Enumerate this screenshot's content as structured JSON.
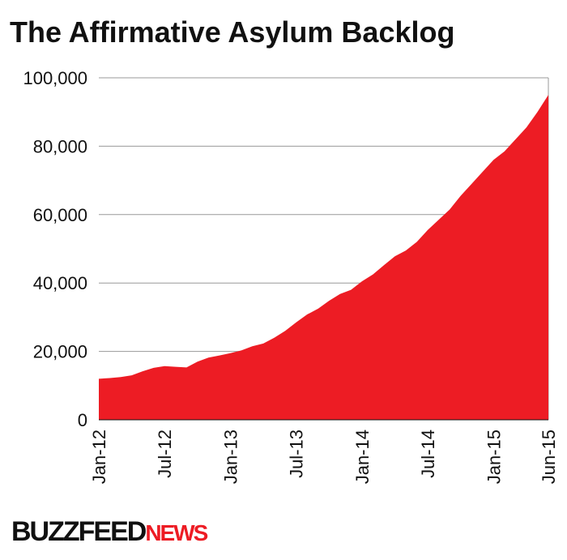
{
  "chart_data": {
    "type": "area",
    "title": "The Affirmative Asylum Backlog",
    "categories": [
      "Jan-12",
      null,
      null,
      null,
      null,
      null,
      "Jul-12",
      null,
      null,
      null,
      null,
      null,
      "Jan-13",
      null,
      null,
      null,
      null,
      null,
      "Jul-13",
      null,
      null,
      null,
      null,
      null,
      "Jan-14",
      null,
      null,
      null,
      null,
      null,
      "Jul-14",
      null,
      null,
      null,
      null,
      null,
      "Jan-15",
      null,
      null,
      null,
      null,
      "Jun-15"
    ],
    "values": [
      12000,
      12200,
      12500,
      13000,
      14200,
      15200,
      15700,
      15500,
      15300,
      17000,
      18200,
      18800,
      19500,
      20300,
      21500,
      22300,
      24000,
      26000,
      28500,
      30800,
      32500,
      34800,
      36800,
      38000,
      40500,
      42500,
      45200,
      47800,
      49500,
      52000,
      55500,
      58500,
      61500,
      65500,
      69000,
      72500,
      76000,
      78500,
      82000,
      85500,
      90000,
      95000
    ],
    "color": "#ed1c24",
    "ylim": [
      0,
      100000
    ],
    "yticks": [
      0,
      {
        "value": 20000,
        "label": "20,000"
      },
      {
        "value": 40000,
        "label": "40,000"
      },
      {
        "value": 60000,
        "label": "60,000"
      },
      {
        "value": 80000,
        "label": "80,000"
      },
      {
        "value": 100000,
        "label": "100,000"
      }
    ],
    "grid": true
  },
  "footer": {
    "brand": "BUZZFEED",
    "brand_suffix": "NEWS"
  }
}
